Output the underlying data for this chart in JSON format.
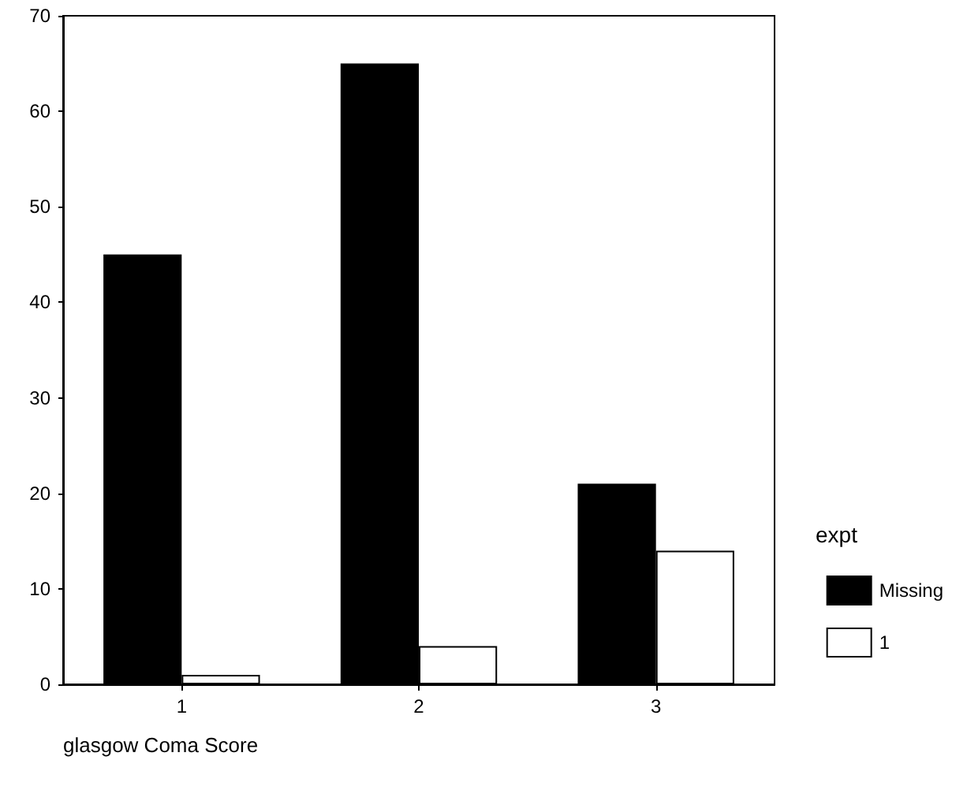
{
  "chart_data": {
    "type": "bar",
    "xlabel": "glasgow Coma Score",
    "legend_title": "expt",
    "categories": [
      "1",
      "2",
      "3"
    ],
    "series": [
      {
        "name": "Missing",
        "color": "#000000",
        "values": [
          45,
          65,
          21
        ]
      },
      {
        "name": "1",
        "color": "#ffffff",
        "values": [
          1,
          4,
          14
        ]
      }
    ],
    "ylim": [
      0,
      70
    ],
    "yticks": [
      0,
      10,
      20,
      30,
      40,
      50,
      60,
      70
    ],
    "grid": false,
    "legend": "right"
  }
}
